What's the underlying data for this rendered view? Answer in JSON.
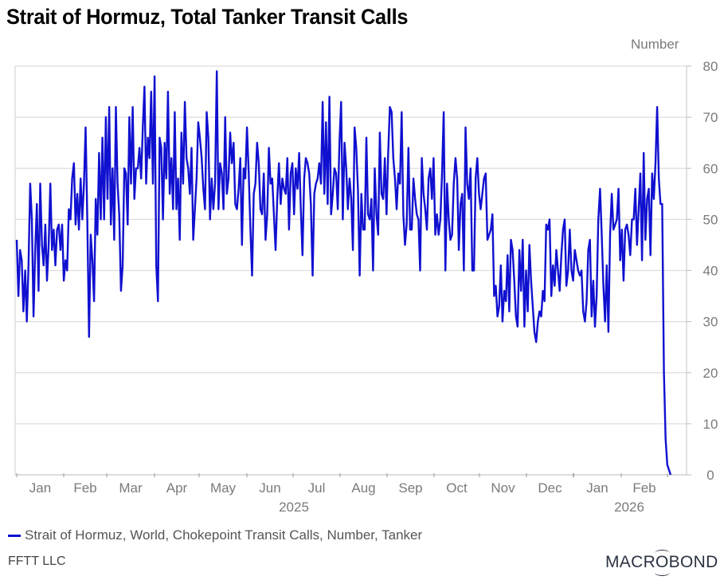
{
  "header": {
    "title": "Strait of Hormuz, Total Tanker Transit Calls",
    "unit_label": "Number"
  },
  "legend": {
    "series_label": "Strait of Hormuz, World, Chokepoint Transit Calls, Number, Tanker"
  },
  "footer": {
    "source": "FFTT LLC",
    "brand_pre": "MACR",
    "brand_o": "O",
    "brand_post": "BOND"
  },
  "colors": {
    "line": "#1010d0",
    "grid": "#dddddd",
    "axis_text": "#7a7a7a"
  },
  "chart_data": {
    "type": "line",
    "title": "Strait of Hormuz, Total Tanker Transit Calls",
    "xlabel": "",
    "ylabel": "Number",
    "ylim": [
      0,
      80
    ],
    "yticks": [
      0,
      10,
      20,
      30,
      40,
      50,
      60,
      70,
      80
    ],
    "grid": true,
    "y_axis_position": "right",
    "legend_position": "bottom",
    "x_tick_labels": [
      "Jan",
      "Feb",
      "Mar",
      "Apr",
      "May",
      "Jun",
      "Jul",
      "Aug",
      "Sep",
      "Oct",
      "Nov",
      "Dec",
      "Jan",
      "Feb"
    ],
    "x_year_labels": [
      {
        "label": "2025",
        "under": "Jun/Jul"
      },
      {
        "label": "2026",
        "under": "Jan/Feb"
      }
    ],
    "x_range": "2025-01-01 to ~2026-03-02 (daily)",
    "series": [
      {
        "name": "Strait of Hormuz, World, Chokepoint Transit Calls, Number, Tanker",
        "frequency": "daily (approx. reading, ~2-day resolution)",
        "values": [
          46,
          35,
          44,
          42,
          32,
          40,
          30,
          41,
          57,
          50,
          31,
          44,
          53,
          36,
          57,
          45,
          41,
          49,
          38,
          45,
          57,
          44,
          48,
          41,
          48,
          49,
          44,
          49,
          38,
          42,
          40,
          52,
          50,
          58,
          61,
          49,
          55,
          48,
          58,
          50,
          57,
          68,
          50,
          27,
          47,
          42,
          34,
          54,
          47,
          63,
          50,
          66,
          50,
          70,
          54,
          72,
          49,
          60,
          46,
          72,
          57,
          51,
          36,
          41,
          60,
          59,
          49,
          70,
          57,
          72,
          54,
          60,
          60,
          64,
          58,
          68,
          76,
          57,
          66,
          62,
          75,
          57,
          78,
          41,
          34,
          66,
          64,
          50,
          65,
          58,
          75,
          55,
          62,
          52,
          71,
          52,
          58,
          46,
          67,
          57,
          73,
          62,
          60,
          55,
          64,
          46,
          52,
          58,
          69,
          66,
          62,
          56,
          52,
          71,
          66,
          50,
          58,
          52,
          57,
          79,
          52,
          61,
          59,
          52,
          70,
          55,
          58,
          67,
          61,
          65,
          53,
          52,
          56,
          62,
          45,
          60,
          58,
          68,
          59,
          48,
          39,
          55,
          57,
          65,
          61,
          52,
          51,
          59,
          46,
          51,
          64,
          57,
          58,
          51,
          44,
          54,
          61,
          53,
          58,
          56,
          55,
          62,
          48,
          59,
          61,
          51,
          60,
          56,
          63,
          52,
          43,
          58,
          62,
          61,
          59,
          53,
          39,
          55,
          57,
          58,
          61,
          57,
          73,
          55,
          69,
          53,
          74,
          51,
          55,
          60,
          59,
          52,
          65,
          73,
          50,
          65,
          60,
          52,
          58,
          54,
          44,
          68,
          64,
          56,
          39,
          55,
          48,
          48,
          66,
          51,
          50,
          54,
          40,
          60,
          51,
          47,
          67,
          55,
          54,
          62,
          51,
          63,
          72,
          71,
          62,
          58,
          52,
          59,
          57,
          71,
          51,
          45,
          49,
          64,
          48,
          48,
          58,
          54,
          51,
          50,
          40,
          62,
          55,
          52,
          48,
          58,
          60,
          54,
          62,
          47,
          51,
          47,
          50,
          59,
          71,
          40,
          57,
          50,
          46,
          47,
          57,
          62,
          58,
          44,
          53,
          55,
          40,
          68,
          57,
          54,
          60,
          40,
          40,
          58,
          62,
          55,
          52,
          55,
          58,
          59,
          46,
          47,
          48,
          51,
          35,
          37,
          31,
          33,
          41,
          30,
          36,
          34,
          43,
          32,
          46,
          44,
          38,
          31,
          29,
          44,
          36,
          46,
          29,
          40,
          32,
          45,
          38,
          33,
          28,
          26,
          30,
          32,
          31,
          36,
          34,
          49,
          48,
          50,
          35,
          41,
          37,
          44,
          40,
          36,
          43,
          48,
          50,
          37,
          40,
          48,
          40,
          38,
          44,
          42,
          40,
          39,
          40,
          32,
          30,
          34,
          44,
          46,
          31,
          38,
          29,
          35,
          50,
          56,
          47,
          37,
          30,
          41,
          28,
          47,
          55,
          48,
          49,
          50,
          56,
          42,
          48,
          38,
          48,
          49,
          47,
          43,
          50,
          50,
          56,
          45,
          52,
          59,
          42,
          63,
          46,
          54,
          56,
          43,
          59,
          54,
          61,
          72,
          58,
          53,
          53,
          20,
          7,
          2,
          1,
          0
        ]
      }
    ]
  }
}
